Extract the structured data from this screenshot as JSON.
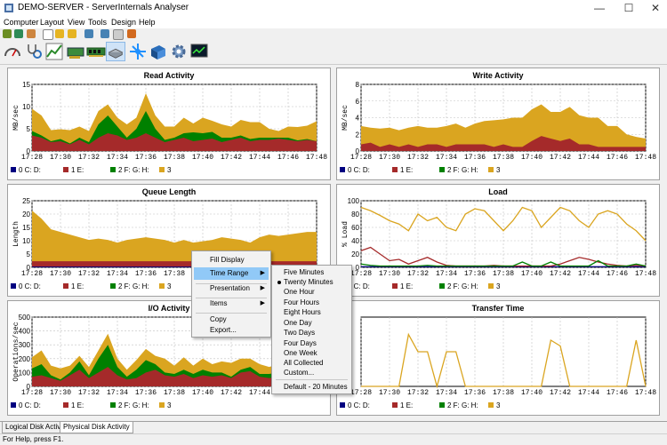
{
  "window": {
    "title": "DEMO-SERVER - ServerInternals Analyser"
  },
  "menu": [
    "Computer",
    "Layout",
    "View",
    "Tools",
    "Design",
    "Help"
  ],
  "colors": {
    "disk0": "#000080",
    "disk1": "#a52a2a",
    "disk2": "#008000",
    "disk3": "#daa520",
    "grid": "#c0c0c0"
  },
  "time_ticks": [
    "17:28",
    "17:30",
    "17:32",
    "17:34",
    "17:36",
    "17:38",
    "17:40",
    "17:42",
    "17:44",
    "17:46",
    "17:48"
  ],
  "legend": [
    "0 C: D:",
    "1 E:",
    "2 F: G: H:",
    "3"
  ],
  "charts": [
    {
      "title": "Read Activity",
      "ylabel": "MB/sec",
      "ylim": [
        0,
        15
      ],
      "yticks": [
        0,
        5,
        10,
        15
      ],
      "type": "area",
      "series": [
        {
          "name": "1 E:",
          "values": [
            3.5,
            3,
            2,
            2.2,
            1.5,
            2.5,
            1.5,
            3,
            4,
            3.5,
            2.5,
            3,
            4,
            3,
            2,
            2.5,
            3,
            2.2,
            2.5,
            2.8,
            2,
            2.5,
            3,
            2.2,
            2.5,
            2.5,
            2.8,
            2.5,
            2.2,
            2.5,
            2.2
          ]
        },
        {
          "name": "2 F: G: H:",
          "values": [
            1,
            0.5,
            0.2,
            0.5,
            0.2,
            0.5,
            0.5,
            3,
            4,
            2,
            0.5,
            2,
            5,
            2,
            0.5,
            0.5,
            1,
            2,
            1.5,
            1.5,
            1,
            0.5,
            0.5,
            0.5,
            0.5,
            0.5,
            0.2,
            0.5,
            0.2,
            0.2,
            0
          ]
        },
        {
          "name": "3",
          "values": [
            5,
            4.5,
            2.5,
            2.2,
            3,
            2.5,
            2.5,
            3,
            2.5,
            2,
            3,
            2.5,
            4,
            3,
            3,
            2.5,
            3.5,
            2,
            3.5,
            2.5,
            3,
            2.5,
            3.5,
            3.8,
            3.5,
            2,
            1.5,
            2.5,
            3,
            3,
            4.5
          ]
        }
      ]
    },
    {
      "title": "Write Activity",
      "ylabel": "MB/sec",
      "ylim": [
        0,
        8
      ],
      "yticks": [
        0,
        2,
        4,
        6,
        8
      ],
      "type": "area",
      "series": [
        {
          "name": "1 E:",
          "values": [
            0.8,
            1,
            0.5,
            0.8,
            0.5,
            0.8,
            0.5,
            0.8,
            0.8,
            0.5,
            0.8,
            0.8,
            0.8,
            0.8,
            0.5,
            0.8,
            0.5,
            0.5,
            1.2,
            1.8,
            1.5,
            1.2,
            1.5,
            0.8,
            0.8,
            0.5,
            0.5,
            0.5,
            0.5,
            0.5,
            0.5
          ]
        },
        {
          "name": "3",
          "values": [
            2.2,
            1.8,
            2.2,
            2,
            2,
            2,
            2.5,
            2,
            2,
            2.5,
            2.5,
            2,
            2.5,
            2.8,
            3.2,
            3,
            3.5,
            3.5,
            3.8,
            3.8,
            3.2,
            3.5,
            3.8,
            3.5,
            3.2,
            3.5,
            2.5,
            2.5,
            1.5,
            1.2,
            1
          ]
        }
      ]
    },
    {
      "title": "Queue Length",
      "ylabel": "Length",
      "ylim": [
        0,
        25
      ],
      "yticks": [
        0,
        5,
        10,
        15,
        20,
        25
      ],
      "type": "area",
      "series": [
        {
          "name": "0 C: D:",
          "values": [
            0.3,
            0.3,
            0.3,
            0.3,
            0.3,
            0.3,
            0.3,
            0.3,
            0.3,
            0.3,
            0.3,
            0.3,
            0.3,
            0.3,
            0.3,
            0.3,
            0.3,
            0.3,
            0.3,
            0.3,
            0.3,
            0.3,
            0.3,
            0.3,
            0.3,
            0.3,
            0.3,
            0.3,
            0.3,
            0.3,
            0.3
          ]
        },
        {
          "name": "1 E:",
          "values": [
            2,
            2,
            2,
            2,
            2,
            2,
            2,
            2,
            2,
            2,
            2,
            2,
            2,
            2,
            2,
            2,
            2,
            2,
            2,
            2,
            2,
            2,
            2,
            2,
            2,
            2,
            2,
            2,
            2,
            2,
            2
          ]
        },
        {
          "name": "3",
          "values": [
            19,
            16,
            12,
            11,
            10,
            9,
            8,
            8.5,
            8,
            7,
            8,
            8.5,
            9,
            8.5,
            8,
            7,
            8,
            7,
            7.5,
            8,
            9,
            8.5,
            8,
            7,
            9,
            10,
            9.5,
            10,
            10.5,
            11,
            11
          ]
        }
      ]
    },
    {
      "title": "Load",
      "ylabel": "% Load",
      "ylim": [
        0,
        100
      ],
      "yticks": [
        0,
        20,
        40,
        60,
        80,
        100
      ],
      "type": "line",
      "series": [
        {
          "name": "0 C: D:",
          "values": [
            1,
            1,
            1,
            1,
            1,
            1,
            1,
            1,
            1,
            1,
            1,
            1,
            1,
            1,
            1,
            1,
            1,
            1,
            1,
            1,
            1,
            1,
            1,
            1,
            1,
            1,
            1,
            1,
            1,
            1,
            1
          ]
        },
        {
          "name": "1 E:",
          "values": [
            25,
            30,
            20,
            10,
            12,
            5,
            10,
            15,
            8,
            3,
            2,
            2,
            2,
            2,
            3,
            2,
            2,
            2,
            2,
            2,
            2,
            5,
            10,
            15,
            12,
            8,
            5,
            3,
            2,
            3,
            2
          ]
        },
        {
          "name": "2 F: G: H:",
          "values": [
            5,
            3,
            2,
            2,
            2,
            2,
            2,
            3,
            2,
            2,
            2,
            2,
            2,
            2,
            2,
            2,
            2,
            8,
            2,
            2,
            8,
            2,
            2,
            2,
            2,
            10,
            2,
            2,
            2,
            5,
            2
          ]
        },
        {
          "name": "3",
          "values": [
            90,
            85,
            78,
            70,
            65,
            55,
            80,
            70,
            75,
            60,
            55,
            80,
            88,
            85,
            70,
            55,
            70,
            90,
            85,
            60,
            75,
            90,
            85,
            70,
            60,
            80,
            85,
            80,
            65,
            55,
            40
          ]
        }
      ]
    },
    {
      "title": "I/O Activity",
      "ylabel": "Operations/sec",
      "ylim": [
        0,
        500
      ],
      "yticks": [
        0,
        100,
        200,
        300,
        400,
        500
      ],
      "type": "area",
      "series": [
        {
          "name": "1 E:",
          "values": [
            70,
            80,
            60,
            40,
            80,
            120,
            60,
            100,
            140,
            80,
            50,
            60,
            100,
            120,
            80,
            70,
            90,
            60,
            80,
            70,
            80,
            60,
            100,
            110,
            70,
            60,
            70,
            60,
            50,
            60,
            60
          ]
        },
        {
          "name": "2 F: G: H:",
          "values": [
            60,
            80,
            20,
            10,
            20,
            60,
            20,
            100,
            160,
            60,
            20,
            60,
            90,
            40,
            20,
            20,
            30,
            30,
            40,
            30,
            20,
            10,
            20,
            30,
            20,
            30,
            30,
            40,
            60,
            80,
            40
          ]
        },
        {
          "name": "3",
          "values": [
            80,
            100,
            70,
            80,
            50,
            40,
            60,
            60,
            80,
            60,
            50,
            70,
            80,
            60,
            100,
            60,
            90,
            60,
            80,
            60,
            80,
            100,
            80,
            60,
            70,
            50,
            60,
            90,
            130,
            120,
            60
          ]
        }
      ]
    },
    {
      "title": "Transfer Time",
      "ylabel": "",
      "ylim": [
        0,
        60
      ],
      "yticks": [],
      "type": "line",
      "series": [
        {
          "name": "3",
          "values": [
            0,
            0,
            0,
            0,
            0,
            45,
            30,
            30,
            0,
            30,
            30,
            0,
            0,
            0,
            0,
            0,
            0,
            0,
            0,
            0,
            40,
            35,
            0,
            0,
            0,
            0,
            0,
            0,
            0,
            40,
            0
          ]
        }
      ]
    }
  ],
  "context_menu": {
    "items": [
      "Fill Display",
      "Time Range",
      "Presentation",
      "Items",
      "Copy",
      "Export..."
    ],
    "submenu": [
      "Five Minutes",
      "Twenty Minutes",
      "One Hour",
      "Four Hours",
      "Eight Hours",
      "One Day",
      "Two Days",
      "Four Days",
      "One Week",
      "All Collected",
      "Custom...",
      "Default - 20 Minutes"
    ]
  },
  "tabs": [
    "Logical Disk Activity",
    "Physical Disk Activity"
  ],
  "status": "For Help, press F1."
}
